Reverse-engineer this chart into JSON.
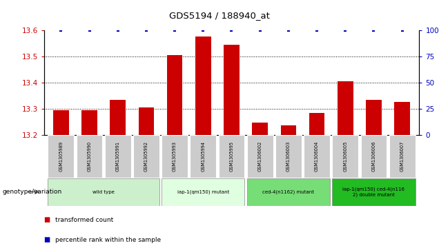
{
  "title": "GDS5194 / 188940_at",
  "samples": [
    "GSM1305989",
    "GSM1305990",
    "GSM1305991",
    "GSM1305992",
    "GSM1305993",
    "GSM1305994",
    "GSM1305995",
    "GSM1306002",
    "GSM1306003",
    "GSM1306004",
    "GSM1306005",
    "GSM1306006",
    "GSM1306007"
  ],
  "values": [
    13.295,
    13.295,
    13.335,
    13.305,
    13.505,
    13.575,
    13.545,
    13.248,
    13.238,
    13.285,
    13.405,
    13.335,
    13.325
  ],
  "percentile": [
    100,
    100,
    100,
    100,
    100,
    100,
    100,
    100,
    100,
    100,
    100,
    100,
    100
  ],
  "bar_color": "#cc0000",
  "dot_color": "#0000bb",
  "ylim_left": [
    13.2,
    13.6
  ],
  "ylim_right": [
    0,
    100
  ],
  "yticks_left": [
    13.2,
    13.3,
    13.4,
    13.5,
    13.6
  ],
  "yticks_right": [
    0,
    25,
    50,
    75,
    100
  ],
  "gridlines": [
    13.3,
    13.4,
    13.5
  ],
  "groups": [
    {
      "label": "wild type",
      "start": 0,
      "end": 3,
      "color": "#ccf0cc"
    },
    {
      "label": "iap-1(qm150) mutant",
      "start": 4,
      "end": 6,
      "color": "#e0ffe0"
    },
    {
      "label": "ced-4(n1162) mutant",
      "start": 7,
      "end": 9,
      "color": "#77dd77"
    },
    {
      "label": "iap-1(qm150) ced-4(n116\n2) double mutant",
      "start": 10,
      "end": 12,
      "color": "#22bb22"
    }
  ],
  "legend_items": [
    {
      "label": "transformed count",
      "color": "#cc0000"
    },
    {
      "label": "percentile rank within the sample",
      "color": "#0000bb"
    }
  ],
  "genotype_label": "genotype/variation",
  "xtick_bg": "#cccccc",
  "bg_color": "#ffffff",
  "bar_width": 0.55
}
